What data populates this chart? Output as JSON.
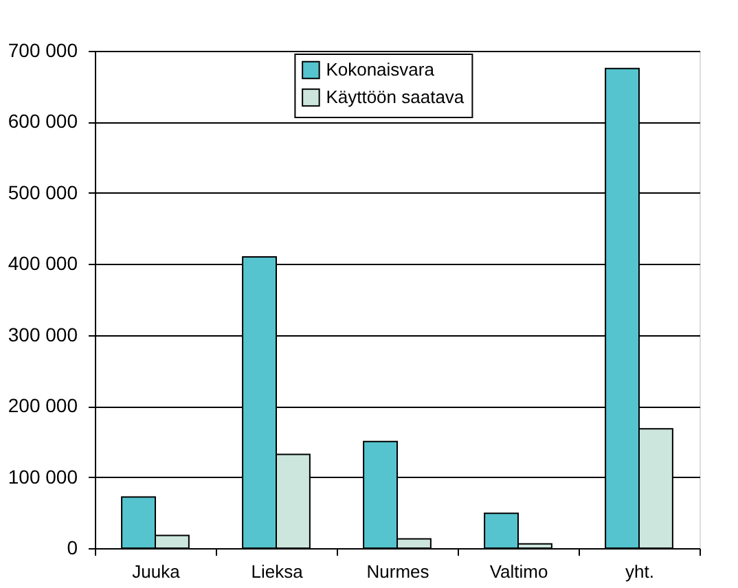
{
  "chart_data": {
    "type": "bar",
    "categories": [
      "Juuka",
      "Lieksa",
      "Nurmes",
      "Valtimo",
      "yht."
    ],
    "series": [
      {
        "name": "Kokonaisvara",
        "color": "#55c4cf",
        "values": [
          72000,
          410000,
          150000,
          49000,
          675000
        ]
      },
      {
        "name": "Käyttöön saatava",
        "color": "#cce6de",
        "values": [
          18000,
          132000,
          13000,
          6000,
          168000
        ]
      }
    ],
    "ylim": [
      0,
      700000
    ],
    "yticks": [
      {
        "value": 0,
        "label": "0"
      },
      {
        "value": 100000,
        "label": "100 000"
      },
      {
        "value": 200000,
        "label": "200 000"
      },
      {
        "value": 300000,
        "label": "300 000"
      },
      {
        "value": 400000,
        "label": "400 000"
      },
      {
        "value": 500000,
        "label": "500 000"
      },
      {
        "value": 600000,
        "label": "600 000"
      },
      {
        "value": 700000,
        "label": "700 000"
      }
    ],
    "grid": "y",
    "legend": "top"
  }
}
